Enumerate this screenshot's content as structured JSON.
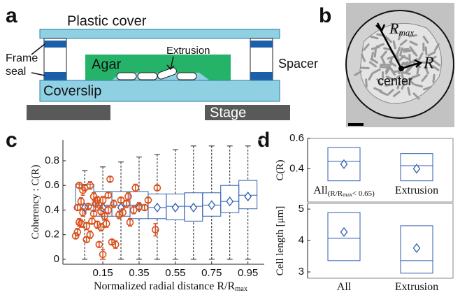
{
  "panel_labels": [
    "a",
    "b",
    "c",
    "d"
  ],
  "diagram": {
    "plastic_cover": "Plastic cover",
    "frame_seal": [
      "Frame",
      "seal"
    ],
    "agar": "Agar",
    "extrusion": "Extrusion",
    "spacer": "Spacer",
    "coverslip": "Coverslip",
    "stage": "Stage"
  },
  "micrograph": {
    "r_max": [
      "R",
      "max"
    ],
    "r": "R",
    "center": "center"
  },
  "chart_data": [
    {
      "type": "box",
      "xlabel": [
        "Normalized radial distance ",
        "R/R",
        "max"
      ],
      "ylabel": [
        "Coherency : ",
        "C(R)"
      ],
      "xlim": [
        -0.07,
        1.04
      ],
      "ylim": [
        -0.04,
        0.97
      ],
      "xticks": [
        0.15,
        0.35,
        0.55,
        0.75,
        0.95
      ],
      "yticks": [
        0,
        0.2,
        0.4,
        0.6,
        0.8
      ],
      "color": "#2f5fb0",
      "whisker_color": "#222",
      "x": [
        0.05,
        0.15,
        0.25,
        0.35,
        0.45,
        0.55,
        0.65,
        0.75,
        0.85,
        0.95
      ],
      "whisker_low": [
        0,
        0,
        0,
        0,
        0,
        0,
        0,
        0,
        0,
        0
      ],
      "q1": [
        0.4,
        0.35,
        0.35,
        0.33,
        0.33,
        0.32,
        0.31,
        0.35,
        0.38,
        0.41
      ],
      "median": [
        0.44,
        0.44,
        0.44,
        0.44,
        0.42,
        0.43,
        0.43,
        0.44,
        0.47,
        0.52
      ],
      "q3": [
        0.61,
        0.55,
        0.55,
        0.55,
        0.53,
        0.53,
        0.54,
        0.54,
        0.6,
        0.64
      ],
      "whisker_high": [
        0.72,
        0.75,
        0.79,
        0.83,
        0.85,
        0.89,
        0.92,
        0.92,
        0.92,
        0.92
      ],
      "mean": [
        0.42,
        0.42,
        0.42,
        0.42,
        0.42,
        0.42,
        0.42,
        0.44,
        0.47,
        0.51
      ],
      "points": {
        "color": "#d9531e",
        "x": [
          0.0,
          0.01,
          0.02,
          0.02,
          0.03,
          0.04,
          0.04,
          0.05,
          0.06,
          0.06,
          0.07,
          0.08,
          0.08,
          0.09,
          0.1,
          0.1,
          0.11,
          0.12,
          0.12,
          0.13,
          0.13,
          0.14,
          0.14,
          0.15,
          0.15,
          0.16,
          0.17,
          0.18,
          0.18,
          0.19,
          0.2,
          0.21,
          0.22,
          0.24,
          0.25,
          0.26,
          0.28,
          0.29,
          0.3,
          0.32,
          0.33,
          0.35,
          0.38,
          0.4,
          0.44,
          0.45,
          0.01,
          0.03
        ],
        "y": [
          0.19,
          0.22,
          0.3,
          0.6,
          0.47,
          0.56,
          0.38,
          0.58,
          0.16,
          0.27,
          0.43,
          0.2,
          0.6,
          0.31,
          0.51,
          0.37,
          0.45,
          0.48,
          0.28,
          0.44,
          0.12,
          0.39,
          0.26,
          0.04,
          0.48,
          0.35,
          0.29,
          0.52,
          0.4,
          0.65,
          0.14,
          0.45,
          0.12,
          0.36,
          0.48,
          0.38,
          0.45,
          0.51,
          0.3,
          0.4,
          0.58,
          0.43,
          0.42,
          0.48,
          0.24,
          0.58,
          0.42,
          0.29
        ],
        "err": [
          0.02,
          0.03,
          0.03,
          0.02,
          0.03,
          0.04,
          0.03,
          0.02,
          0.02,
          0.03,
          0.02,
          0.03,
          0.03,
          0.02,
          0.03,
          0.02,
          0.05,
          0.03,
          0.03,
          0.04,
          0.02,
          0.03,
          0.03,
          0.04,
          0.03,
          0.03,
          0.03,
          0.02,
          0.03,
          0.02,
          0.02,
          0.03,
          0.03,
          0.03,
          0.02,
          0.03,
          0.03,
          0.03,
          0.03,
          0.03,
          0.03,
          0.03,
          0.02,
          0.02,
          0.05,
          0.02,
          0.02,
          0.03
        ]
      }
    },
    {
      "type": "box",
      "ylabel": [
        "C(R)"
      ],
      "categories": [
        "All",
        "Extrusion"
      ],
      "category_note": [
        "(R/R",
        "max",
        "< 0.65)"
      ],
      "ylim": [
        0.18,
        0.6
      ],
      "yticks": [
        0.4,
        0.6
      ],
      "color": "#2f5fb0",
      "q1": [
        0.32,
        0.32
      ],
      "median": [
        0.45,
        0.42
      ],
      "q3": [
        0.54,
        0.5
      ],
      "mean": [
        0.43,
        0.4
      ]
    },
    {
      "type": "box",
      "ylabel": [
        "Cell length [μm]"
      ],
      "categories": [
        "All",
        "Extrusion"
      ],
      "ylim": [
        2.8,
        5.18
      ],
      "yticks": [
        3,
        4,
        5
      ],
      "color": "#2f5fb0",
      "q1": [
        3.36,
        2.96
      ],
      "median": [
        4.07,
        3.36
      ],
      "q3": [
        4.89,
        4.47
      ],
      "mean": [
        4.27,
        3.76
      ]
    }
  ]
}
